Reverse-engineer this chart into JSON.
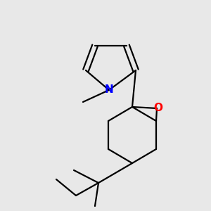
{
  "bg_color": "#e8e8e8",
  "bond_color": "#000000",
  "N_color": "#0000ff",
  "O_color": "#ff0000",
  "line_width": 1.6,
  "font_size_atom": 10
}
